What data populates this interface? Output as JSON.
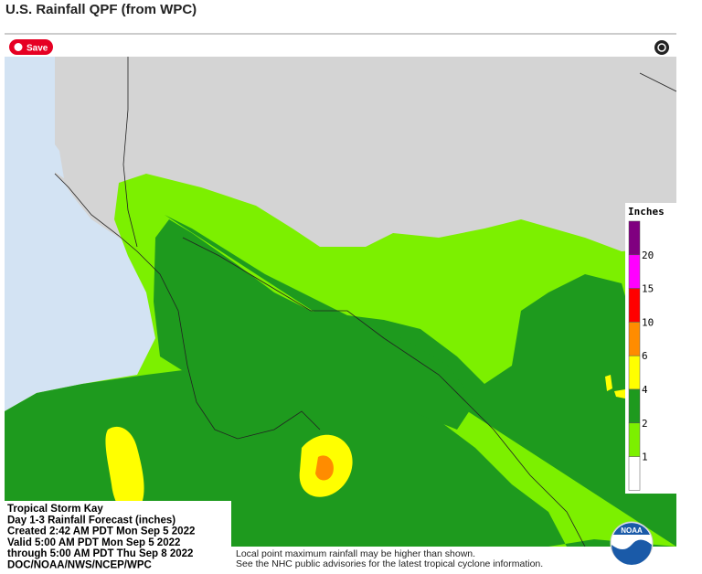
{
  "header": {
    "title": "U.S. Rainfall QPF (from WPC)"
  },
  "save_button": "Save",
  "legend": {
    "title": "Inches",
    "bands": [
      "#800080",
      "#ff00ff",
      "#ff0000",
      "#ff8c00",
      "#ffff00",
      "#1e9a1e",
      "#7cf000",
      "#ffffff"
    ],
    "ticks": [
      20,
      15,
      10,
      6,
      4,
      2,
      1
    ]
  },
  "info": {
    "lines": [
      "Tropical Storm Kay",
      "Day 1-3 Rainfall Forecast (inches)",
      "Created 2:42 AM PDT Mon Sep 5 2022",
      "Valid 5:00 AM PDT Mon Sep 5 2022",
      "through 5:00 AM PDT Thu Sep 8 2022",
      "DOC/NOAA/NWS/NCEP/WPC"
    ]
  },
  "notes": [
    "Local point maximum rainfall may be higher than shown.",
    "See the NHC public advisories for the latest tropical cyclone information."
  ],
  "logo": "NOAA"
}
